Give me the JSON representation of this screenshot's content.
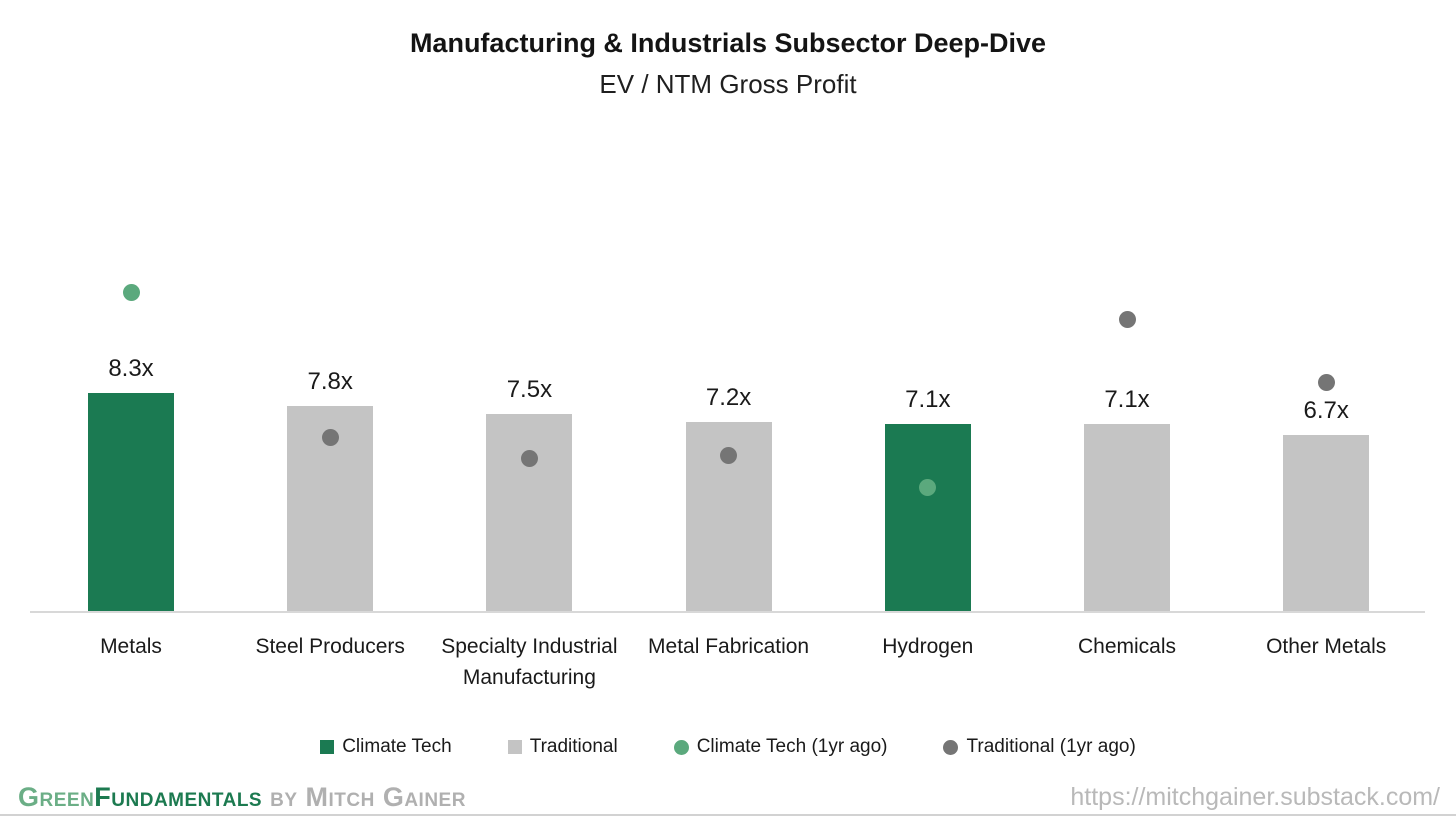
{
  "title": "Manufacturing & Industrials Subsector Deep-Dive",
  "subtitle": "EV / NTM Gross Profit",
  "chart_data": {
    "type": "bar",
    "title": "Manufacturing & Industrials Subsector Deep-Dive",
    "subtitle": "EV / NTM Gross Profit",
    "xlabel": "",
    "ylabel": "",
    "value_suffix": "x",
    "categories": [
      "Metals",
      "Steel Producers",
      "Specialty Industrial Manufacturing",
      "Metal Fabrication",
      "Hydrogen",
      "Chemicals",
      "Other Metals"
    ],
    "bar_labels": [
      "8.3x",
      "7.8x",
      "7.5x",
      "7.2x",
      "7.1x",
      "7.1x",
      "6.7x"
    ],
    "series": [
      {
        "name": "Climate Tech",
        "render": "bar",
        "color": "#1B7A52",
        "values": [
          8.3,
          null,
          null,
          null,
          7.1,
          null,
          null
        ]
      },
      {
        "name": "Traditional",
        "render": "bar",
        "color": "#C4C4C4",
        "values": [
          null,
          7.8,
          7.5,
          7.2,
          null,
          7.1,
          6.7
        ]
      },
      {
        "name": "Climate Tech (1yr ago)",
        "render": "point",
        "color": "#5BA97D",
        "values": [
          12.1,
          null,
          null,
          null,
          4.7,
          null,
          null
        ]
      },
      {
        "name": "Traditional (1yr ago)",
        "render": "point",
        "color": "#757575",
        "values": [
          null,
          6.6,
          5.8,
          5.9,
          null,
          11.1,
          8.7
        ]
      }
    ],
    "ylim": [
      0,
      14
    ],
    "grid": false,
    "y_axis_visible": false,
    "legend_position": "bottom"
  },
  "legend": {
    "items": [
      {
        "label": "Climate Tech",
        "color": "#1B7A52",
        "shape": "square"
      },
      {
        "label": "Traditional",
        "color": "#C4C4C4",
        "shape": "square"
      },
      {
        "label": "Climate Tech (1yr ago)",
        "color": "#5BA97D",
        "shape": "circle"
      },
      {
        "label": "Traditional (1yr ago)",
        "color": "#757575",
        "shape": "circle"
      }
    ]
  },
  "footer": {
    "brand_segments": [
      {
        "text": "Green",
        "style": "green-light"
      },
      {
        "text": "Fundamentals",
        "style": "green-dark"
      },
      {
        "text": " by ",
        "style": "gray"
      },
      {
        "text": "Mitch Gainer",
        "style": "gray"
      }
    ],
    "url": "https://mitchgainer.substack.com/"
  },
  "colors": {
    "climate_bar": "#1B7A52",
    "traditional_bar": "#C4C4C4",
    "climate_dot_1yr": "#5BA97D",
    "traditional_dot_1yr": "#757575",
    "axis_line": "#D8D8D8",
    "text": "#1a1a1a"
  }
}
